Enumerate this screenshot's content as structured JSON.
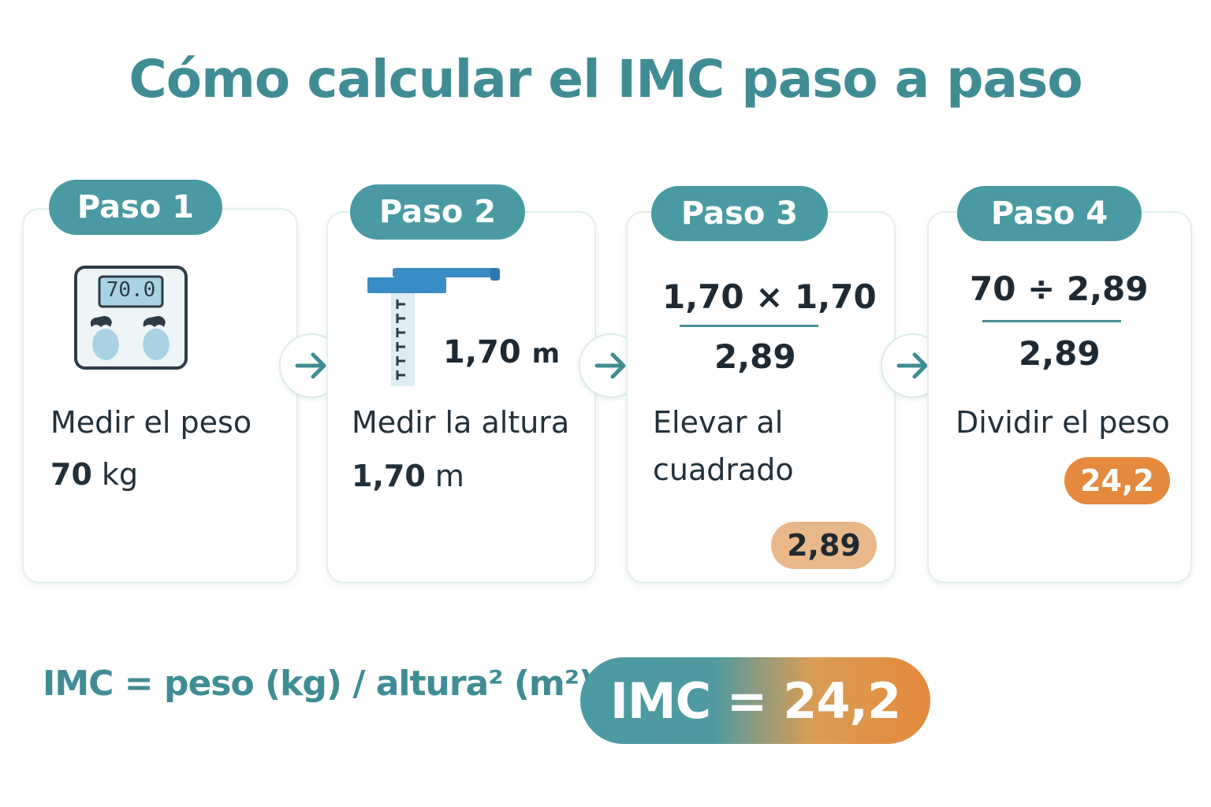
{
  "title": "Cómo calcular el IMC paso a paso",
  "steps": [
    {
      "pill": "Paso 1",
      "label": "Medir el peso",
      "value_num": "70",
      "value_unit": "kg",
      "scale_display": "70.0"
    },
    {
      "pill": "Paso 2",
      "label": "Medir la altura",
      "value_num": "1,70",
      "value_unit": "m",
      "icon_height": "1,70",
      "icon_unit": "m"
    },
    {
      "pill": "Paso 3",
      "label_line1": "Elevar al",
      "label_line2": "cuadrado",
      "top": "1,70 × 1,70",
      "bottom": "2,89",
      "badge": "2,89"
    },
    {
      "pill": "Paso 4",
      "label": "Dividir el peso",
      "top": "70 ÷ 2,89",
      "bottom": "2,89",
      "badge": "24,2"
    }
  ],
  "formula": "IMC = peso (kg) / altura² (m²)",
  "result": "IMC = 24,2",
  "colors": {
    "teal": "#4a9aa3",
    "title_teal": "#3f8c95",
    "orange": "#e4893e",
    "light_orange": "#e8b88b"
  }
}
